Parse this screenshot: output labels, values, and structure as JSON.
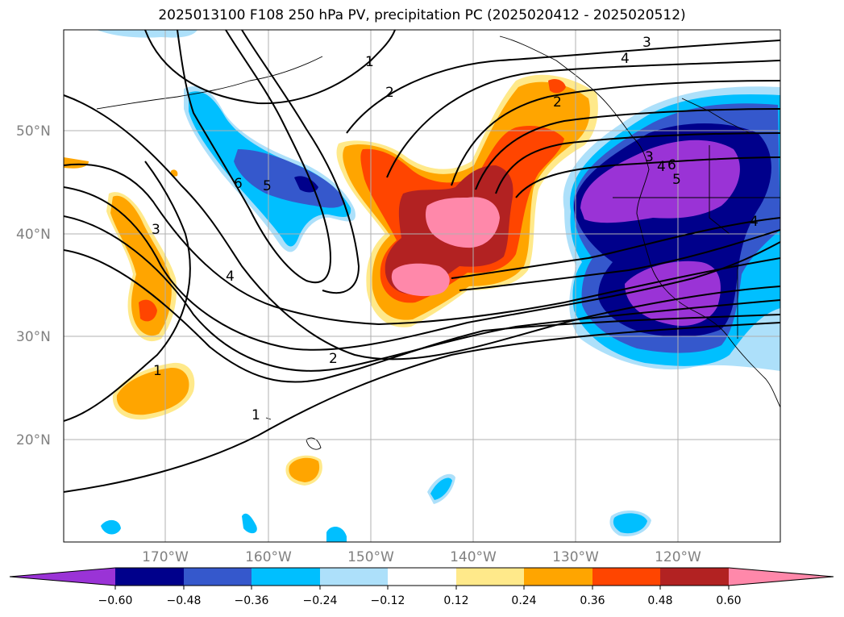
{
  "title": "2025013100 F108 250 hPa PV, precipitation PC (2025020412 - 2025020512)",
  "map": {
    "projection": "lat-lon",
    "lon_range": [
      -180,
      -110
    ],
    "lat_range": [
      10,
      60
    ],
    "lat_labels": [
      "50°N",
      "40°N",
      "30°N",
      "20°N"
    ],
    "lon_labels": [
      "170°W",
      "160°W",
      "150°W",
      "140°W",
      "130°W",
      "120°W"
    ],
    "gridlines": true
  },
  "pv_contour_labels": [
    "1",
    "2",
    "3",
    "4",
    "6",
    "5",
    "3",
    "4",
    "2",
    "1",
    "1",
    "2",
    "3",
    "4",
    "6",
    "5",
    "4"
  ],
  "colorbar": {
    "tick_labels": [
      "−0.60",
      "−0.48",
      "−0.36",
      "−0.24",
      "−0.12",
      "0.12",
      "0.24",
      "0.36",
      "0.48",
      "0.60"
    ],
    "colors": [
      "#9a33d6",
      "#00008b",
      "#3558cc",
      "#00bfff",
      "#ade0fa",
      "#ffffff",
      "#ffe98a",
      "#ffa500",
      "#ff4500",
      "#b22222",
      "#ff88aa"
    ]
  },
  "colors": {
    "pos1": "#ffe98a",
    "pos2": "#ffa500",
    "pos3": "#ff4500",
    "pos4": "#b22222",
    "pos5": "#ff88aa",
    "neg1": "#ade0fa",
    "neg2": "#00bfff",
    "neg3": "#3558cc",
    "neg4": "#00008b",
    "neg5": "#9a33d6"
  }
}
